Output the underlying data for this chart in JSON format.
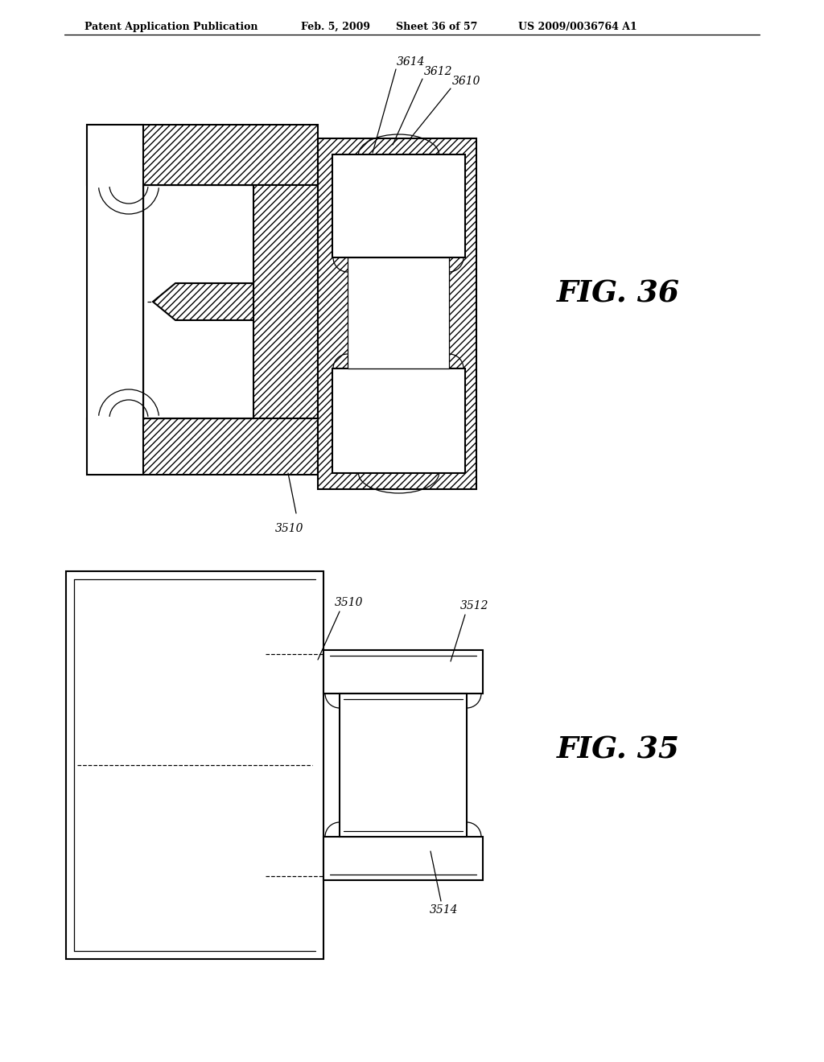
{
  "bg_color": "#ffffff",
  "lc": "#000000",
  "header_text": "Patent Application Publication",
  "header_date": "Feb. 5, 2009",
  "header_sheet": "Sheet 36 of 57",
  "header_patent": "US 2009/0036764 A1",
  "fig36_label": "FIG. 36",
  "fig35_label": "FIG. 35",
  "lbl_3610": "3610",
  "lbl_3612": "3612",
  "lbl_3614": "3614",
  "lbl_3510a": "3510",
  "lbl_3510b": "3510",
  "lbl_3512": "3512",
  "lbl_3514": "3514"
}
